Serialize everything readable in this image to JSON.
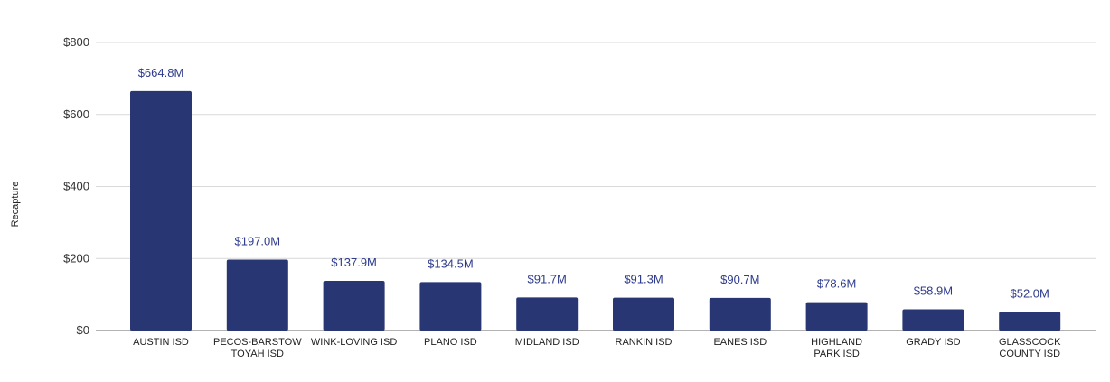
{
  "chart_data": {
    "type": "bar",
    "title": "",
    "xlabel": "",
    "ylabel": "Recapture",
    "ylim": [
      0,
      800
    ],
    "yticks": [
      0,
      200,
      400,
      600,
      800
    ],
    "ytick_labels": [
      "$0",
      "$200",
      "$400",
      "$600",
      "$800"
    ],
    "grid": true,
    "legend": "none",
    "categories": [
      [
        "AUSTIN ISD"
      ],
      [
        "PECOS-BARSTOW",
        "TOYAH ISD"
      ],
      [
        "WINK-LOVING ISD"
      ],
      [
        "PLANO ISD"
      ],
      [
        "MIDLAND ISD"
      ],
      [
        "RANKIN ISD"
      ],
      [
        "EANES ISD"
      ],
      [
        "HIGHLAND",
        "PARK ISD"
      ],
      [
        "GRADY ISD"
      ],
      [
        "GLASSCOCK",
        "COUNTY ISD"
      ]
    ],
    "values": [
      664.8,
      197.0,
      137.9,
      134.5,
      91.7,
      91.3,
      90.7,
      78.6,
      58.9,
      52.0
    ],
    "data_labels": [
      "$664.8M",
      "$197.0M",
      "$137.9M",
      "$134.5M",
      "$91.7M",
      "$91.3M",
      "$90.7M",
      "$78.6M",
      "$58.9M",
      "$52.0M"
    ],
    "colors": {
      "bar": "#283673",
      "data_label": "#2e3b8c",
      "grid": "#d9d9d9",
      "axis": "#666666",
      "text": "#222222"
    }
  }
}
